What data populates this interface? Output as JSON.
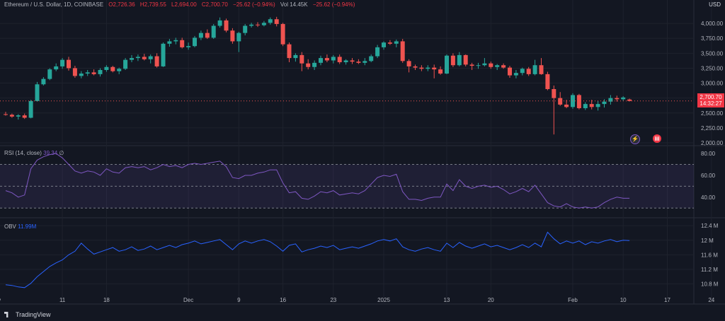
{
  "header": {
    "symbol": "Ethereum / U.S. Dollar, 1D, COINBASE",
    "open": "O2,726.36",
    "high": "H2,739.55",
    "low": "L2,694.00",
    "close": "C2,700.70",
    "change": "−25.62 (−0.94%)",
    "volume": "Vol 14.45K",
    "vol_change": "−25.62 (−0.94%)"
  },
  "currency_label": "USD",
  "last_price": "2,700.70",
  "countdown": "14:32:27",
  "rsi_label": "RSI (14, close)",
  "rsi_value": "39.34",
  "rsi_extra": "∅",
  "obv_label": "OBV",
  "obv_value": "11.99M",
  "brand": "TradingView",
  "colors": {
    "up": "#26a69a",
    "down": "#ef5350",
    "rsi": "#7e57c2",
    "obv": "#2962ff",
    "bg": "#131722"
  },
  "chart_data": [
    {
      "type": "candlestick",
      "title": "Ethereum / U.S. Dollar, 1D, COINBASE",
      "ylim": [
        2000,
        4250
      ],
      "y_ticks": [
        "4,000.00",
        "3,750.00",
        "3,500.00",
        "3,250.00",
        "3,000.00",
        "2,750.00",
        "2,500.00",
        "2,250.00",
        "2,000.00"
      ],
      "y_tick_values": [
        4000,
        3750,
        3500,
        3250,
        3000,
        2750,
        2500,
        2250,
        2000
      ],
      "x_ticks": [
        "v",
        "11",
        "18",
        "Dec",
        "9",
        "16",
        "23",
        "2025",
        "13",
        "20",
        "Feb",
        "10",
        "17",
        "24"
      ],
      "x_tick_index": [
        -1,
        9,
        16,
        29,
        37,
        44,
        52,
        60,
        70,
        77,
        90,
        98,
        105,
        112
      ],
      "candles": [
        [
          2480,
          2520,
          2455,
          2470
        ],
        [
          2470,
          2490,
          2420,
          2440
        ],
        [
          2440,
          2480,
          2390,
          2460
        ],
        [
          2460,
          2490,
          2400,
          2420
        ],
        [
          2420,
          2720,
          2410,
          2700
        ],
        [
          2700,
          3020,
          2690,
          2980
        ],
        [
          2980,
          3100,
          2960,
          3070
        ],
        [
          3070,
          3250,
          3050,
          3230
        ],
        [
          3230,
          3330,
          3200,
          3280
        ],
        [
          3280,
          3420,
          3240,
          3390
        ],
        [
          3390,
          3440,
          3210,
          3250
        ],
        [
          3250,
          3290,
          3090,
          3120
        ],
        [
          3120,
          3200,
          3080,
          3160
        ],
        [
          3160,
          3220,
          3120,
          3180
        ],
        [
          3180,
          3230,
          3130,
          3150
        ],
        [
          3150,
          3250,
          3110,
          3220
        ],
        [
          3220,
          3300,
          3190,
          3270
        ],
        [
          3270,
          3290,
          3180,
          3200
        ],
        [
          3200,
          3260,
          3150,
          3240
        ],
        [
          3240,
          3420,
          3220,
          3390
        ],
        [
          3390,
          3470,
          3350,
          3420
        ],
        [
          3420,
          3480,
          3370,
          3440
        ],
        [
          3440,
          3490,
          3380,
          3400
        ],
        [
          3400,
          3480,
          3330,
          3450
        ],
        [
          3450,
          3500,
          3260,
          3280
        ],
        [
          3280,
          3680,
          3270,
          3660
        ],
        [
          3660,
          3740,
          3610,
          3700
        ],
        [
          3700,
          3760,
          3650,
          3720
        ],
        [
          3720,
          3760,
          3580,
          3600
        ],
        [
          3600,
          3680,
          3560,
          3620
        ],
        [
          3620,
          3790,
          3600,
          3760
        ],
        [
          3760,
          3880,
          3720,
          3840
        ],
        [
          3840,
          3900,
          3740,
          3760
        ],
        [
          3760,
          3990,
          3740,
          3960
        ],
        [
          3960,
          4100,
          3930,
          4050
        ],
        [
          4050,
          4080,
          3850,
          3880
        ],
        [
          3880,
          3920,
          3660,
          3700
        ],
        [
          3700,
          3860,
          3520,
          3840
        ],
        [
          3840,
          3990,
          3800,
          3960
        ],
        [
          3960,
          4010,
          3930,
          3980
        ],
        [
          3980,
          4020,
          3940,
          3970
        ],
        [
          3970,
          4040,
          3950,
          4010
        ],
        [
          4010,
          4100,
          3980,
          4070
        ],
        [
          4070,
          4110,
          3950,
          3990
        ],
        [
          3990,
          4010,
          3620,
          3650
        ],
        [
          3650,
          3680,
          3350,
          3420
        ],
        [
          3420,
          3500,
          3360,
          3470
        ],
        [
          3470,
          3520,
          3200,
          3330
        ],
        [
          3330,
          3400,
          3230,
          3270
        ],
        [
          3270,
          3380,
          3220,
          3340
        ],
        [
          3340,
          3460,
          3300,
          3420
        ],
        [
          3420,
          3480,
          3350,
          3380
        ],
        [
          3380,
          3470,
          3330,
          3440
        ],
        [
          3440,
          3480,
          3320,
          3350
        ],
        [
          3350,
          3400,
          3310,
          3380
        ],
        [
          3380,
          3420,
          3320,
          3360
        ],
        [
          3360,
          3400,
          3320,
          3340
        ],
        [
          3340,
          3420,
          3300,
          3370
        ],
        [
          3370,
          3480,
          3350,
          3450
        ],
        [
          3450,
          3640,
          3420,
          3600
        ],
        [
          3600,
          3700,
          3560,
          3680
        ],
        [
          3680,
          3720,
          3640,
          3660
        ],
        [
          3660,
          3730,
          3600,
          3700
        ],
        [
          3700,
          3740,
          3340,
          3370
        ],
        [
          3370,
          3400,
          3180,
          3280
        ],
        [
          3280,
          3310,
          3220,
          3260
        ],
        [
          3260,
          3300,
          3200,
          3240
        ],
        [
          3240,
          3300,
          3200,
          3260
        ],
        [
          3260,
          3310,
          3080,
          3230
        ],
        [
          3230,
          3280,
          3140,
          3160
        ],
        [
          3160,
          3480,
          3150,
          3460
        ],
        [
          3460,
          3500,
          3270,
          3300
        ],
        [
          3300,
          3520,
          3280,
          3470
        ],
        [
          3470,
          3480,
          3280,
          3310
        ],
        [
          3310,
          3340,
          3220,
          3290
        ],
        [
          3290,
          3340,
          3240,
          3300
        ],
        [
          3300,
          3420,
          3280,
          3330
        ],
        [
          3330,
          3360,
          3240,
          3270
        ],
        [
          3270,
          3320,
          3220,
          3300
        ],
        [
          3300,
          3330,
          3240,
          3260
        ],
        [
          3260,
          3290,
          3090,
          3130
        ],
        [
          3130,
          3220,
          3080,
          3170
        ],
        [
          3170,
          3260,
          3130,
          3240
        ],
        [
          3240,
          3270,
          3120,
          3150
        ],
        [
          3150,
          3390,
          3130,
          3300
        ],
        [
          3300,
          3420,
          3140,
          3150
        ],
        [
          3150,
          3190,
          2880,
          2900
        ],
        [
          2900,
          2960,
          2140,
          2750
        ],
        [
          2750,
          2850,
          2620,
          2640
        ],
        [
          2640,
          2720,
          2580,
          2600
        ],
        [
          2600,
          2830,
          2570,
          2800
        ],
        [
          2800,
          2820,
          2560,
          2580
        ],
        [
          2580,
          2680,
          2550,
          2650
        ],
        [
          2650,
          2720,
          2560,
          2600
        ],
        [
          2600,
          2700,
          2540,
          2650
        ],
        [
          2650,
          2730,
          2590,
          2690
        ],
        [
          2690,
          2800,
          2640,
          2750
        ],
        [
          2750,
          2790,
          2690,
          2730
        ],
        [
          2730,
          2780,
          2700,
          2760
        ],
        [
          2726,
          2740,
          2694,
          2701
        ]
      ]
    },
    {
      "type": "line",
      "title": "RSI (14, close)",
      "ylim": [
        25,
        82
      ],
      "y_ticks": [
        "80.00",
        "60.00",
        "40.00"
      ],
      "y_tick_values": [
        80,
        60,
        40
      ],
      "bands": [
        70,
        50,
        30
      ],
      "values": [
        46,
        44,
        40,
        42,
        66,
        74,
        77,
        79,
        80,
        76,
        70,
        64,
        62,
        64,
        63,
        60,
        66,
        63,
        62,
        67,
        68,
        67,
        68,
        65,
        67,
        70,
        68,
        69,
        67,
        70,
        71,
        70,
        71,
        72,
        73,
        68,
        58,
        57,
        60,
        60,
        62,
        63,
        65,
        65,
        53,
        44,
        45,
        39,
        38,
        41,
        45,
        44,
        46,
        42,
        43,
        44,
        43,
        46,
        52,
        58,
        60,
        59,
        61,
        45,
        38,
        38,
        37,
        39,
        40,
        40,
        52,
        46,
        56,
        50,
        48,
        50,
        51,
        49,
        50,
        47,
        43,
        45,
        48,
        45,
        51,
        43,
        35,
        32,
        31,
        34,
        31,
        30,
        31,
        30,
        31,
        35,
        38,
        40,
        39,
        39
      ]
    },
    {
      "type": "line",
      "title": "OBV",
      "ylim": [
        10.6,
        12.5
      ],
      "y_ticks": [
        "12.4 M",
        "12 M",
        "11.6 M",
        "11.2 M",
        "10.8 M"
      ],
      "y_tick_values": [
        12.4,
        12.0,
        11.6,
        11.2,
        10.8
      ],
      "values": [
        10.78,
        10.76,
        10.72,
        10.7,
        10.82,
        11.0,
        11.14,
        11.28,
        11.38,
        11.46,
        11.6,
        11.7,
        11.92,
        11.76,
        11.62,
        11.68,
        11.74,
        11.8,
        11.7,
        11.74,
        11.82,
        11.72,
        11.76,
        11.84,
        11.74,
        11.8,
        11.86,
        11.8,
        11.88,
        11.92,
        11.98,
        11.9,
        11.94,
        11.98,
        12.02,
        11.88,
        11.74,
        11.9,
        11.98,
        11.92,
        11.98,
        12.02,
        11.96,
        11.84,
        11.7,
        11.86,
        11.9,
        11.68,
        11.74,
        11.78,
        11.84,
        11.8,
        11.86,
        11.74,
        11.78,
        11.82,
        11.78,
        11.84,
        11.9,
        11.98,
        12.02,
        11.98,
        12.04,
        11.82,
        11.74,
        11.7,
        11.76,
        11.8,
        11.74,
        11.7,
        11.92,
        11.8,
        11.94,
        11.84,
        11.78,
        11.84,
        11.9,
        11.82,
        11.86,
        11.8,
        11.74,
        11.8,
        11.88,
        11.8,
        11.92,
        11.82,
        12.22,
        12.04,
        11.9,
        11.98,
        11.92,
        11.98,
        11.88,
        11.96,
        11.92,
        11.98,
        12.02,
        11.96,
        12.0,
        11.99
      ]
    }
  ]
}
